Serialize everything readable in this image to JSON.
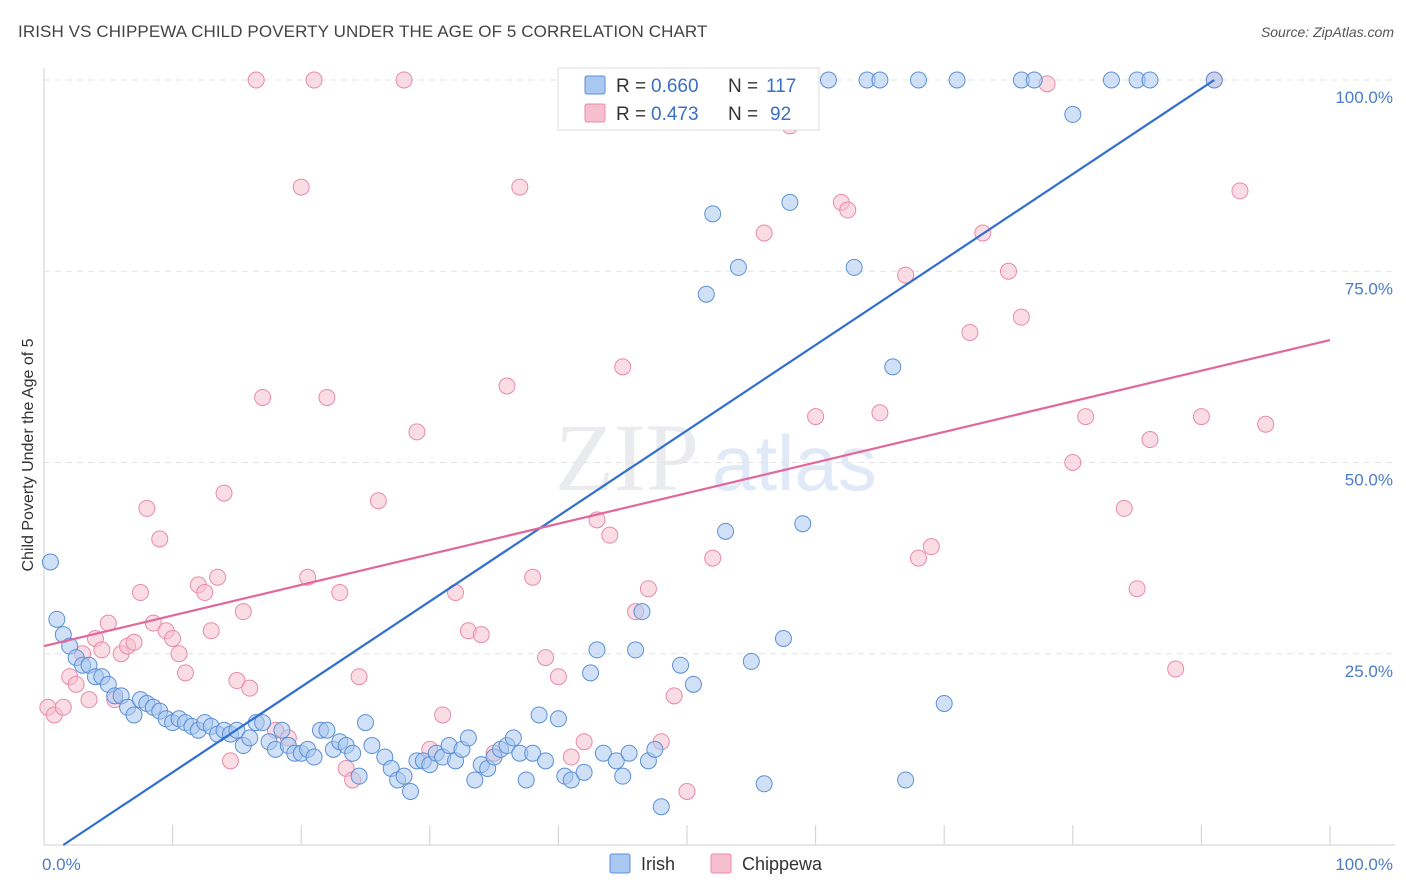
{
  "header": {
    "title": "IRISH VS CHIPPEWA CHILD POVERTY UNDER THE AGE OF 5 CORRELATION CHART",
    "source": "Source: ZipAtlas.com"
  },
  "colors": {
    "irish_fill": "#a9c8f0",
    "irish_stroke": "#5b8fd6",
    "irish_line": "#2f6fd0",
    "chippewa_fill": "#f6bfd0",
    "chippewa_stroke": "#e98aa8",
    "chippewa_line": "#e2679a",
    "tick_label": "#4a7cc9"
  },
  "legend": {
    "rows": [
      {
        "r_label": "R =",
        "r_value": "0.660",
        "n_label": "N =",
        "n_value": "117"
      },
      {
        "r_label": "R =",
        "r_value": "0.473",
        "n_label": "N =",
        "n_value": "92"
      }
    ],
    "bottom": [
      "Irish",
      "Chippewa"
    ]
  },
  "watermark": {
    "zip": "ZIP",
    "atlas": "atlas"
  },
  "chart_data": {
    "type": "scatter",
    "title": "IRISH VS CHIPPEWA CHILD POVERTY UNDER THE AGE OF 5 CORRELATION CHART",
    "xlabel": "",
    "ylabel": "Child Poverty Under the Age of 5",
    "xlim": [
      0,
      100
    ],
    "ylim": [
      0,
      100
    ],
    "x_tick_labels": [
      "0.0%",
      "100.0%"
    ],
    "y_ticks": [
      25,
      50,
      75,
      100
    ],
    "y_tick_labels": [
      "25.0%",
      "50.0%",
      "75.0%",
      "100.0%"
    ],
    "grid": true,
    "legend_position": "top-center",
    "series": [
      {
        "name": "Irish",
        "r": 0.66,
        "n": 117,
        "trend": [
          [
            1.5,
            0
          ],
          [
            91,
            100
          ]
        ],
        "points": [
          [
            0.5,
            37
          ],
          [
            1,
            29.5
          ],
          [
            1.5,
            27.5
          ],
          [
            2,
            26
          ],
          [
            2.5,
            24.5
          ],
          [
            3,
            23.5
          ],
          [
            3.5,
            23.5
          ],
          [
            4,
            22
          ],
          [
            4.5,
            22
          ],
          [
            5,
            21
          ],
          [
            5.5,
            19.5
          ],
          [
            6,
            19.5
          ],
          [
            6.5,
            18
          ],
          [
            7,
            17
          ],
          [
            7.5,
            19
          ],
          [
            8,
            18.5
          ],
          [
            8.5,
            18
          ],
          [
            9,
            17.5
          ],
          [
            9.5,
            16.5
          ],
          [
            10,
            16
          ],
          [
            10.5,
            16.5
          ],
          [
            11,
            16
          ],
          [
            11.5,
            15.5
          ],
          [
            12,
            15
          ],
          [
            12.5,
            16
          ],
          [
            13,
            15.5
          ],
          [
            13.5,
            14.5
          ],
          [
            14,
            15
          ],
          [
            14.5,
            14.5
          ],
          [
            15,
            15
          ],
          [
            15.5,
            13
          ],
          [
            16,
            14
          ],
          [
            16.5,
            16
          ],
          [
            17,
            16
          ],
          [
            17.5,
            13.5
          ],
          [
            18,
            12.5
          ],
          [
            18.5,
            15
          ],
          [
            19,
            13
          ],
          [
            19.5,
            12
          ],
          [
            20,
            12
          ],
          [
            20.5,
            12.5
          ],
          [
            21,
            11.5
          ],
          [
            21.5,
            15
          ],
          [
            22,
            15
          ],
          [
            22.5,
            12.5
          ],
          [
            23,
            13.5
          ],
          [
            23.5,
            13
          ],
          [
            24,
            12
          ],
          [
            24.5,
            9
          ],
          [
            25,
            16
          ],
          [
            25.5,
            13
          ],
          [
            26.5,
            11.5
          ],
          [
            27,
            10
          ],
          [
            27.5,
            8.5
          ],
          [
            28,
            9
          ],
          [
            28.5,
            7
          ],
          [
            29,
            11
          ],
          [
            29.5,
            11
          ],
          [
            30,
            10.5
          ],
          [
            30.5,
            12
          ],
          [
            31,
            11.5
          ],
          [
            31.5,
            13
          ],
          [
            32,
            11
          ],
          [
            32.5,
            12.5
          ],
          [
            33,
            14
          ],
          [
            33.5,
            8.5
          ],
          [
            34,
            10.5
          ],
          [
            34.5,
            10
          ],
          [
            35,
            11.5
          ],
          [
            35.5,
            12.5
          ],
          [
            36,
            13
          ],
          [
            36.5,
            14
          ],
          [
            37,
            12
          ],
          [
            37.5,
            8.5
          ],
          [
            38,
            12
          ],
          [
            38.5,
            17
          ],
          [
            39,
            11
          ],
          [
            40,
            16.5
          ],
          [
            40.5,
            9
          ],
          [
            41,
            8.5
          ],
          [
            42,
            9.5
          ],
          [
            42.5,
            22.5
          ],
          [
            43,
            25.5
          ],
          [
            43.5,
            12
          ],
          [
            44.5,
            11
          ],
          [
            45,
            9
          ],
          [
            45.5,
            12
          ],
          [
            46,
            25.5
          ],
          [
            46.5,
            30.5
          ],
          [
            47,
            11
          ],
          [
            47.5,
            12.5
          ],
          [
            48,
            5
          ],
          [
            49.5,
            23.5
          ],
          [
            50,
            100
          ],
          [
            50.5,
            21
          ],
          [
            51,
            100
          ],
          [
            51.5,
            72
          ],
          [
            52,
            82.5
          ],
          [
            53,
            41
          ],
          [
            54,
            75.5
          ],
          [
            55,
            24
          ],
          [
            56,
            8
          ],
          [
            57,
            100
          ],
          [
            57.5,
            27
          ],
          [
            58,
            84
          ],
          [
            59,
            42
          ],
          [
            61,
            100
          ],
          [
            63,
            75.5
          ],
          [
            64,
            100
          ],
          [
            65,
            100
          ],
          [
            66,
            62.5
          ],
          [
            67,
            8.5
          ],
          [
            68,
            100
          ],
          [
            70,
            18.5
          ],
          [
            71,
            100
          ],
          [
            76,
            100
          ],
          [
            77,
            100
          ],
          [
            80,
            95.5
          ],
          [
            83,
            100
          ],
          [
            85,
            100
          ],
          [
            86,
            100
          ],
          [
            91,
            100
          ]
        ]
      },
      {
        "name": "Chippewa",
        "r": 0.473,
        "n": 92,
        "trend": [
          [
            0,
            26
          ],
          [
            100,
            66
          ]
        ],
        "points": [
          [
            0.3,
            18
          ],
          [
            0.8,
            17
          ],
          [
            1.5,
            18
          ],
          [
            2,
            22
          ],
          [
            2.5,
            21
          ],
          [
            3,
            25
          ],
          [
            3.5,
            19
          ],
          [
            4,
            27
          ],
          [
            4.5,
            25.5
          ],
          [
            5,
            29
          ],
          [
            5.5,
            19
          ],
          [
            6,
            25
          ],
          [
            6.5,
            26
          ],
          [
            7,
            26.5
          ],
          [
            7.5,
            33
          ],
          [
            8,
            44
          ],
          [
            8.5,
            29
          ],
          [
            9,
            40
          ],
          [
            9.5,
            28
          ],
          [
            10,
            27
          ],
          [
            10.5,
            25
          ],
          [
            11,
            22.5
          ],
          [
            12,
            34
          ],
          [
            12.5,
            33
          ],
          [
            13,
            28
          ],
          [
            13.5,
            35
          ],
          [
            14,
            46
          ],
          [
            14.5,
            11
          ],
          [
            15,
            21.5
          ],
          [
            15.5,
            30.5
          ],
          [
            16,
            20.5
          ],
          [
            16.5,
            100
          ],
          [
            17,
            58.5
          ],
          [
            18,
            15
          ],
          [
            19,
            14
          ],
          [
            20,
            86
          ],
          [
            20.5,
            35
          ],
          [
            21,
            100
          ],
          [
            22,
            58.5
          ],
          [
            23,
            33
          ],
          [
            23.5,
            10
          ],
          [
            24,
            8.5
          ],
          [
            24.5,
            22
          ],
          [
            26,
            45
          ],
          [
            28,
            100
          ],
          [
            29,
            54
          ],
          [
            30,
            12.5
          ],
          [
            31,
            17
          ],
          [
            32,
            33
          ],
          [
            33,
            28
          ],
          [
            34,
            27.5
          ],
          [
            35,
            12
          ],
          [
            36,
            60
          ],
          [
            37,
            86
          ],
          [
            38,
            35
          ],
          [
            39,
            24.5
          ],
          [
            40,
            22
          ],
          [
            41,
            11.5
          ],
          [
            42,
            13.5
          ],
          [
            43,
            42.5
          ],
          [
            44,
            40.5
          ],
          [
            45,
            62.5
          ],
          [
            46,
            30.5
          ],
          [
            47,
            33.5
          ],
          [
            48,
            13.5
          ],
          [
            49,
            19.5
          ],
          [
            50,
            7
          ],
          [
            52,
            37.5
          ],
          [
            56,
            80
          ],
          [
            57,
            100
          ],
          [
            58,
            94
          ],
          [
            60,
            56
          ],
          [
            62,
            84
          ],
          [
            62.5,
            83
          ],
          [
            65,
            56.5
          ],
          [
            67,
            74.5
          ],
          [
            68,
            37.5
          ],
          [
            69,
            39
          ],
          [
            72,
            67
          ],
          [
            73,
            80
          ],
          [
            75,
            75
          ],
          [
            76,
            69
          ],
          [
            78,
            99.5
          ],
          [
            80,
            50
          ],
          [
            81,
            56
          ],
          [
            84,
            44
          ],
          [
            85,
            33.5
          ],
          [
            86,
            53
          ],
          [
            88,
            23
          ],
          [
            90,
            56
          ],
          [
            91,
            100
          ],
          [
            93,
            85.5
          ],
          [
            95,
            55
          ]
        ]
      }
    ]
  }
}
